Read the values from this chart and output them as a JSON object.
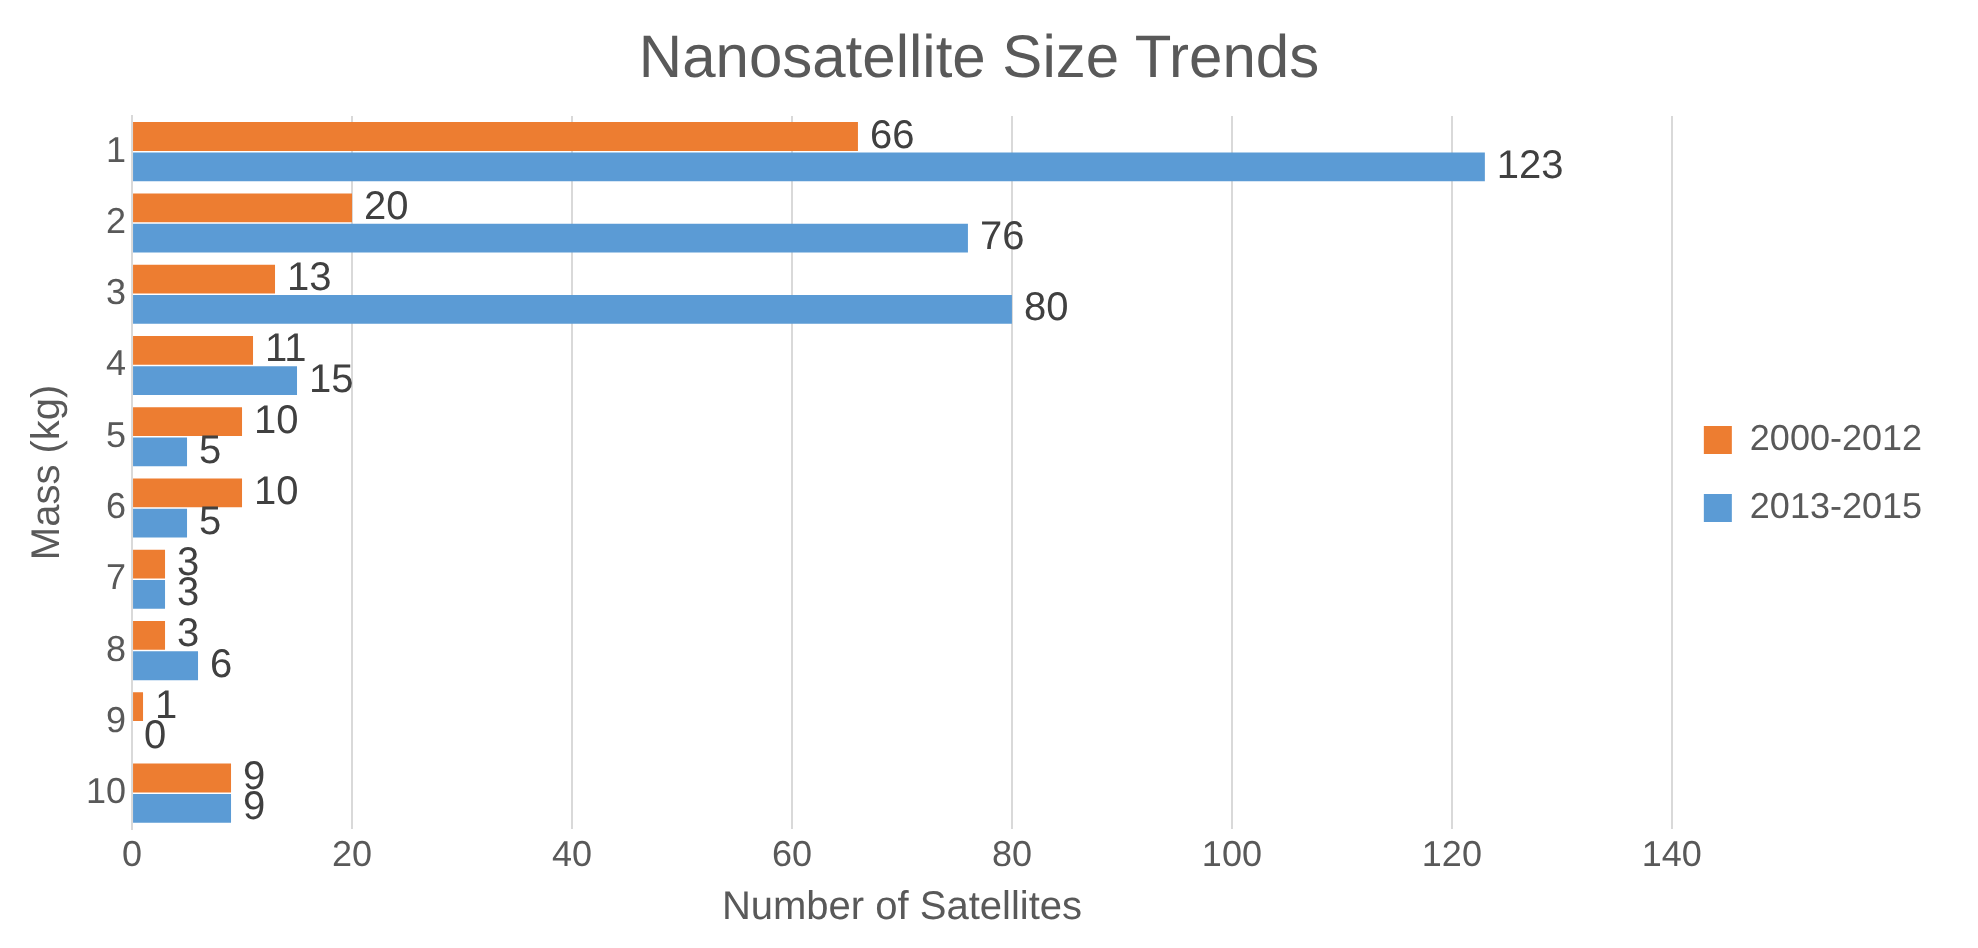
{
  "chart_data": {
    "type": "bar",
    "orientation": "horizontal",
    "title": "Nanosatellite Size Trends",
    "xlabel": "Number of Satellites",
    "ylabel": "Mass (kg)",
    "categories": [
      "1",
      "2",
      "3",
      "4",
      "5",
      "6",
      "7",
      "8",
      "9",
      "10"
    ],
    "series": [
      {
        "name": "2000-2012",
        "color": "#ed7d31",
        "values": [
          66,
          20,
          13,
          11,
          10,
          10,
          3,
          3,
          1,
          9
        ]
      },
      {
        "name": "2013-2015",
        "color": "#5b9bd5",
        "values": [
          123,
          76,
          80,
          15,
          5,
          5,
          3,
          6,
          0,
          9
        ]
      }
    ],
    "xlim": [
      0,
      140
    ],
    "xticks": [
      0,
      20,
      40,
      60,
      80,
      100,
      120,
      140
    ],
    "grid": "x",
    "legend": "right",
    "data_labels": true
  }
}
